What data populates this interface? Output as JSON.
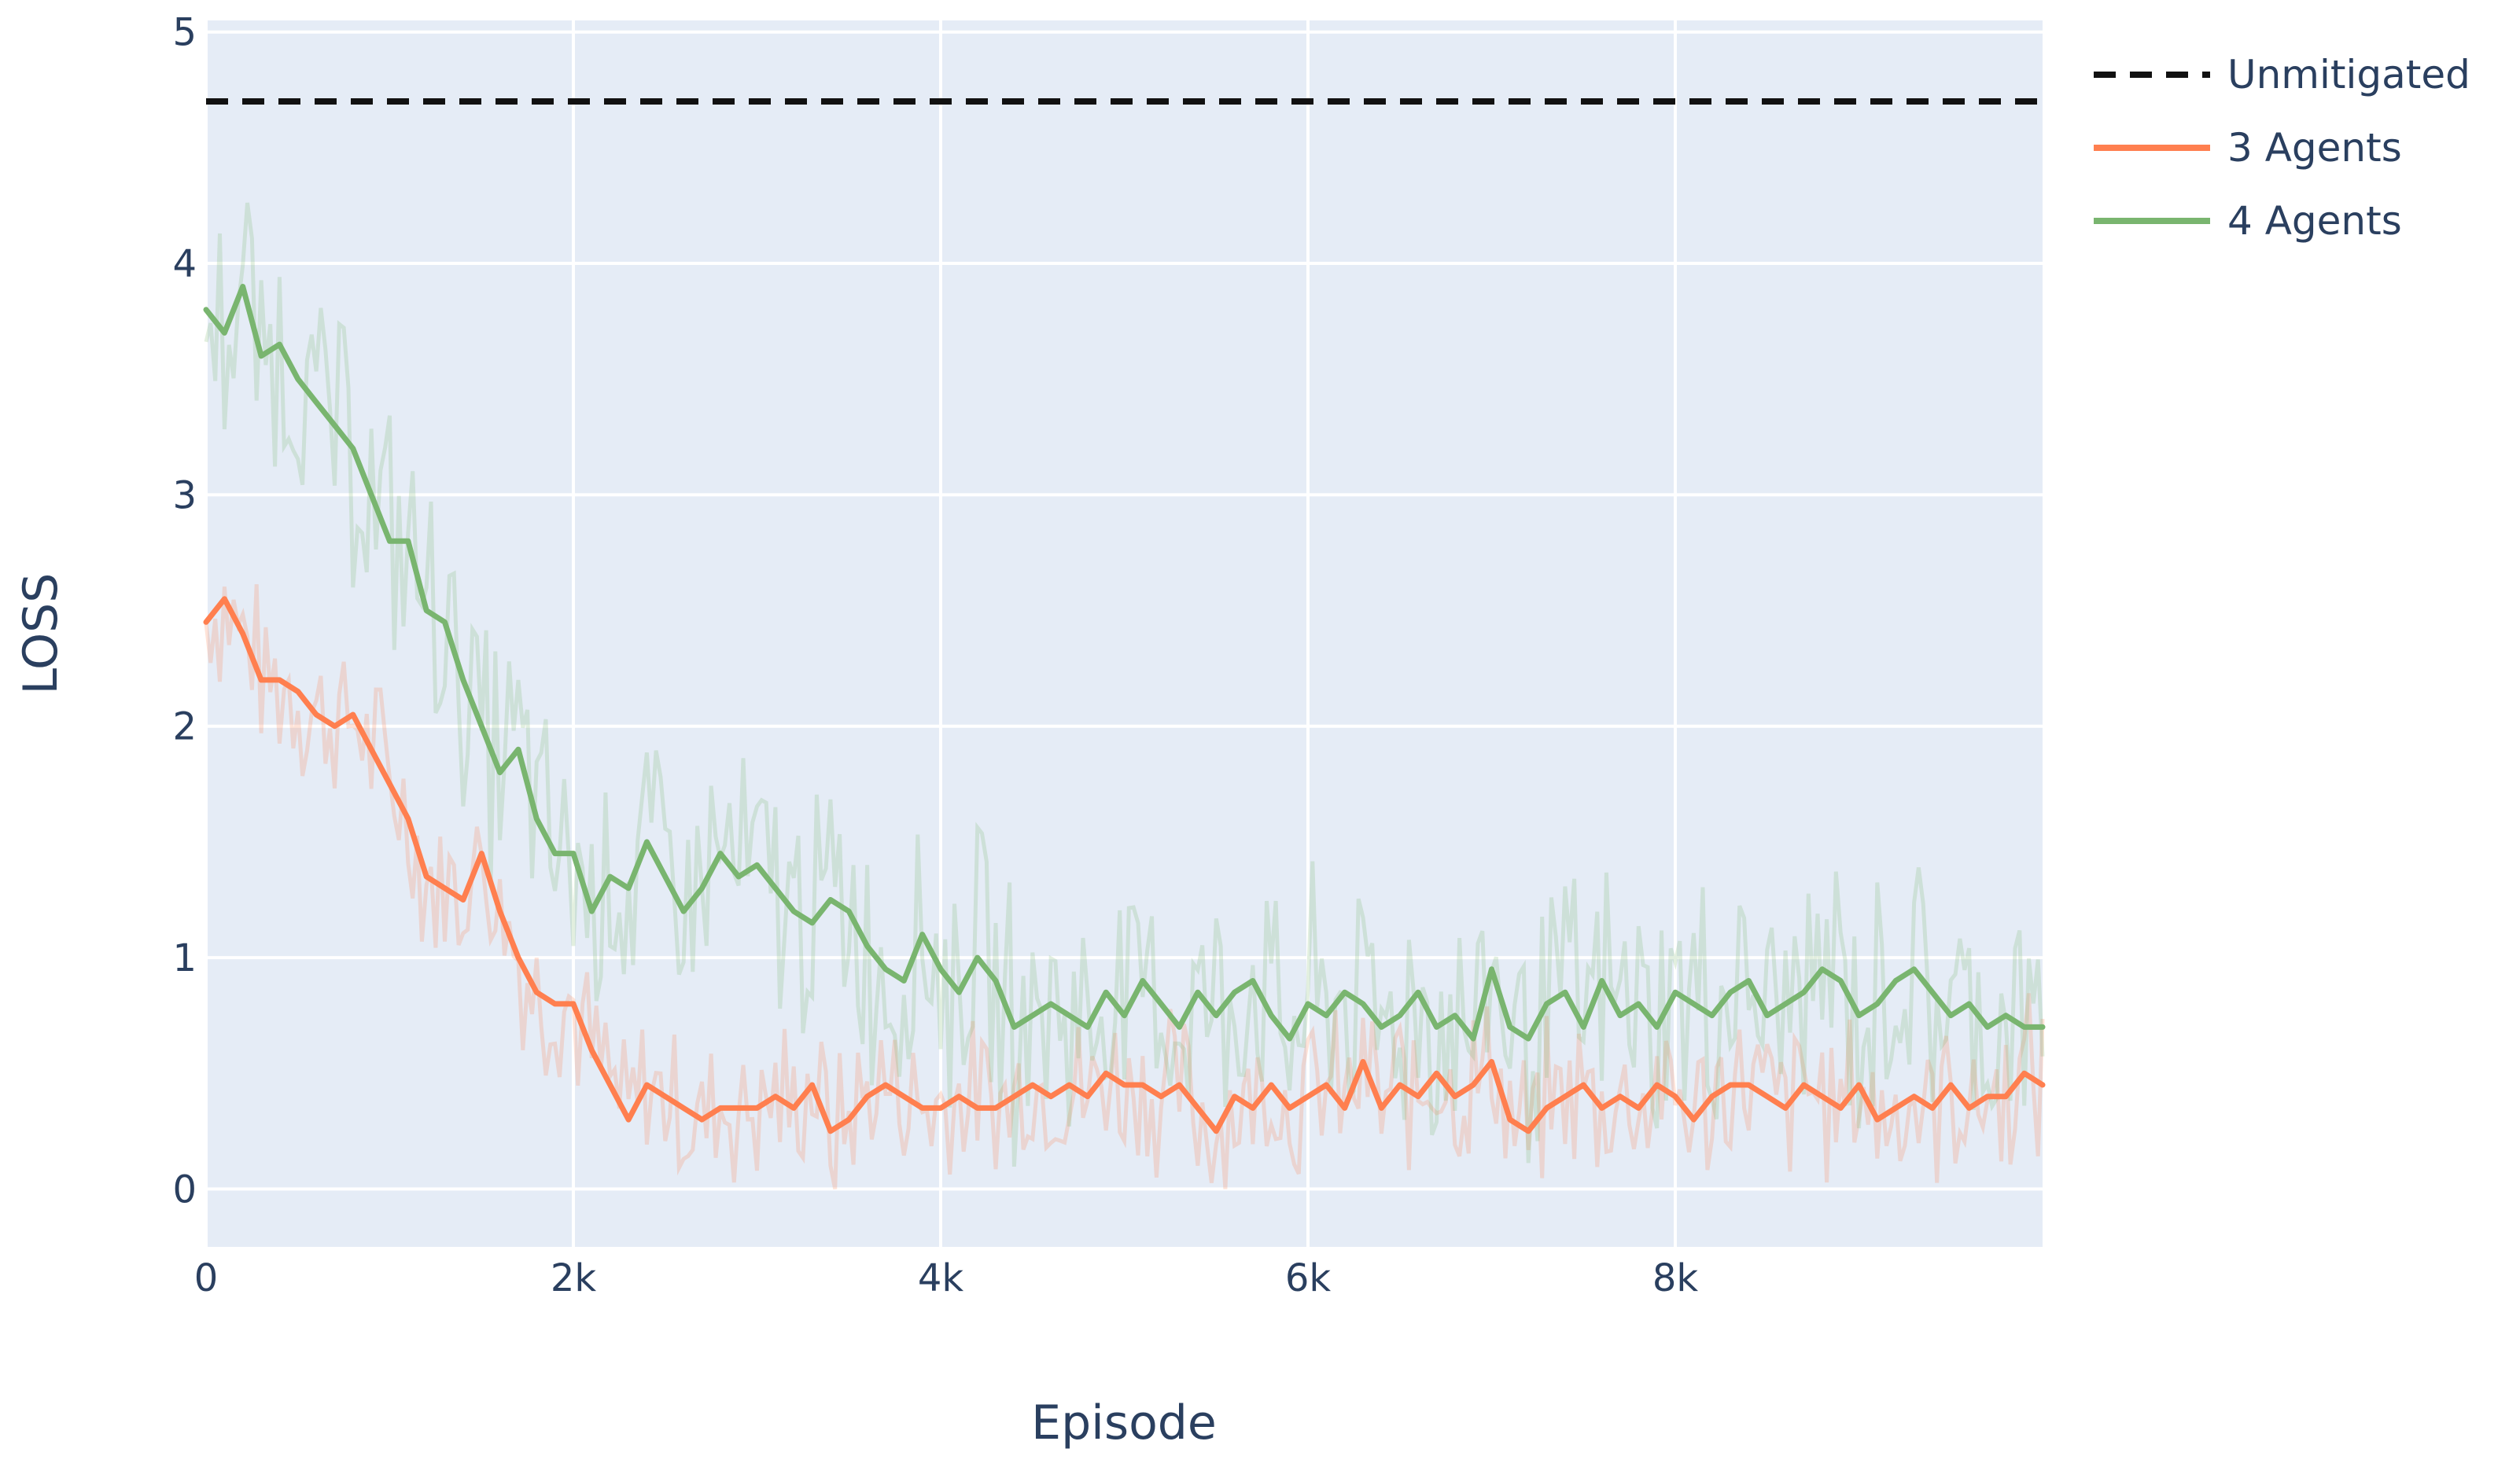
{
  "chart_data": {
    "type": "line",
    "xlabel": "Episode",
    "ylabel": "LOSS",
    "xlim": [
      0,
      10000
    ],
    "ylim": [
      -0.25,
      5.05
    ],
    "grid": true,
    "legend_position": "top-right",
    "x_ticks": [
      {
        "value": 0,
        "label": "0"
      },
      {
        "value": 2000,
        "label": "2k"
      },
      {
        "value": 4000,
        "label": "4k"
      },
      {
        "value": 6000,
        "label": "6k"
      },
      {
        "value": 8000,
        "label": "8k"
      }
    ],
    "y_ticks": [
      {
        "value": 0,
        "label": "0"
      },
      {
        "value": 1,
        "label": "1"
      },
      {
        "value": 2,
        "label": "2"
      },
      {
        "value": 3,
        "label": "3"
      },
      {
        "value": 4,
        "label": "4"
      },
      {
        "value": 5,
        "label": "5"
      }
    ],
    "series": [
      {
        "name": "Unmitigated",
        "color": "#111111",
        "style": "dashed",
        "x": [
          0,
          10000
        ],
        "y": [
          4.7,
          4.7
        ]
      },
      {
        "name": "3 Agents",
        "color": "#ff7f4f",
        "style": "solid",
        "x": [
          0,
          100,
          200,
          300,
          400,
          500,
          600,
          700,
          800,
          900,
          1000,
          1100,
          1200,
          1300,
          1400,
          1500,
          1600,
          1700,
          1800,
          1900,
          2000,
          2100,
          2200,
          2300,
          2400,
          2500,
          2600,
          2700,
          2800,
          2900,
          3000,
          3100,
          3200,
          3300,
          3400,
          3500,
          3600,
          3700,
          3800,
          3900,
          4000,
          4100,
          4200,
          4300,
          4400,
          4500,
          4600,
          4700,
          4800,
          4900,
          5000,
          5100,
          5200,
          5300,
          5400,
          5500,
          5600,
          5700,
          5800,
          5900,
          6000,
          6100,
          6200,
          6300,
          6400,
          6500,
          6600,
          6700,
          6800,
          6900,
          7000,
          7100,
          7200,
          7300,
          7400,
          7500,
          7600,
          7700,
          7800,
          7900,
          8000,
          8100,
          8200,
          8300,
          8400,
          8500,
          8600,
          8700,
          8800,
          8900,
          9000,
          9100,
          9200,
          9300,
          9400,
          9500,
          9600,
          9700,
          9800,
          9900,
          10000
        ],
        "y": [
          2.45,
          2.55,
          2.4,
          2.2,
          2.2,
          2.15,
          2.05,
          2.0,
          2.05,
          1.9,
          1.75,
          1.6,
          1.35,
          1.3,
          1.25,
          1.45,
          1.2,
          1.0,
          0.85,
          0.8,
          0.8,
          0.6,
          0.45,
          0.3,
          0.45,
          0.4,
          0.35,
          0.3,
          0.35,
          0.35,
          0.35,
          0.4,
          0.35,
          0.45,
          0.25,
          0.3,
          0.4,
          0.45,
          0.4,
          0.35,
          0.35,
          0.4,
          0.35,
          0.35,
          0.4,
          0.45,
          0.4,
          0.45,
          0.4,
          0.5,
          0.45,
          0.45,
          0.4,
          0.45,
          0.35,
          0.25,
          0.4,
          0.35,
          0.45,
          0.35,
          0.4,
          0.45,
          0.35,
          0.55,
          0.35,
          0.45,
          0.4,
          0.5,
          0.4,
          0.45,
          0.55,
          0.3,
          0.25,
          0.35,
          0.4,
          0.45,
          0.35,
          0.4,
          0.35,
          0.45,
          0.4,
          0.3,
          0.4,
          0.45,
          0.45,
          0.4,
          0.35,
          0.45,
          0.4,
          0.35,
          0.45,
          0.3,
          0.35,
          0.4,
          0.35,
          0.45,
          0.35,
          0.4,
          0.4,
          0.5,
          0.45
        ]
      },
      {
        "name": "4 Agents",
        "color": "#79b56f",
        "style": "solid",
        "x": [
          0,
          100,
          200,
          300,
          400,
          500,
          600,
          700,
          800,
          900,
          1000,
          1100,
          1200,
          1300,
          1400,
          1500,
          1600,
          1700,
          1800,
          1900,
          2000,
          2100,
          2200,
          2300,
          2400,
          2500,
          2600,
          2700,
          2800,
          2900,
          3000,
          3100,
          3200,
          3300,
          3400,
          3500,
          3600,
          3700,
          3800,
          3900,
          4000,
          4100,
          4200,
          4300,
          4400,
          4500,
          4600,
          4700,
          4800,
          4900,
          5000,
          5100,
          5200,
          5300,
          5400,
          5500,
          5600,
          5700,
          5800,
          5900,
          6000,
          6100,
          6200,
          6300,
          6400,
          6500,
          6600,
          6700,
          6800,
          6900,
          7000,
          7100,
          7200,
          7300,
          7400,
          7500,
          7600,
          7700,
          7800,
          7900,
          8000,
          8100,
          8200,
          8300,
          8400,
          8500,
          8600,
          8700,
          8800,
          8900,
          9000,
          9100,
          9200,
          9300,
          9400,
          9500,
          9600,
          9700,
          9800,
          9900,
          10000
        ],
        "y": [
          3.8,
          3.7,
          3.9,
          3.6,
          3.65,
          3.5,
          3.4,
          3.3,
          3.2,
          3.0,
          2.8,
          2.8,
          2.5,
          2.45,
          2.2,
          2.0,
          1.8,
          1.9,
          1.6,
          1.45,
          1.45,
          1.2,
          1.35,
          1.3,
          1.5,
          1.35,
          1.2,
          1.3,
          1.45,
          1.35,
          1.4,
          1.3,
          1.2,
          1.15,
          1.25,
          1.2,
          1.05,
          0.95,
          0.9,
          1.1,
          0.95,
          0.85,
          1.0,
          0.9,
          0.7,
          0.75,
          0.8,
          0.75,
          0.7,
          0.85,
          0.75,
          0.9,
          0.8,
          0.7,
          0.85,
          0.75,
          0.85,
          0.9,
          0.75,
          0.65,
          0.8,
          0.75,
          0.85,
          0.8,
          0.7,
          0.75,
          0.85,
          0.7,
          0.75,
          0.65,
          0.95,
          0.7,
          0.65,
          0.8,
          0.85,
          0.7,
          0.9,
          0.75,
          0.8,
          0.7,
          0.85,
          0.8,
          0.75,
          0.85,
          0.9,
          0.75,
          0.8,
          0.85,
          0.95,
          0.9,
          0.75,
          0.8,
          0.9,
          0.95,
          0.85,
          0.75,
          0.8,
          0.7,
          0.75,
          0.7,
          0.7
        ]
      }
    ]
  }
}
